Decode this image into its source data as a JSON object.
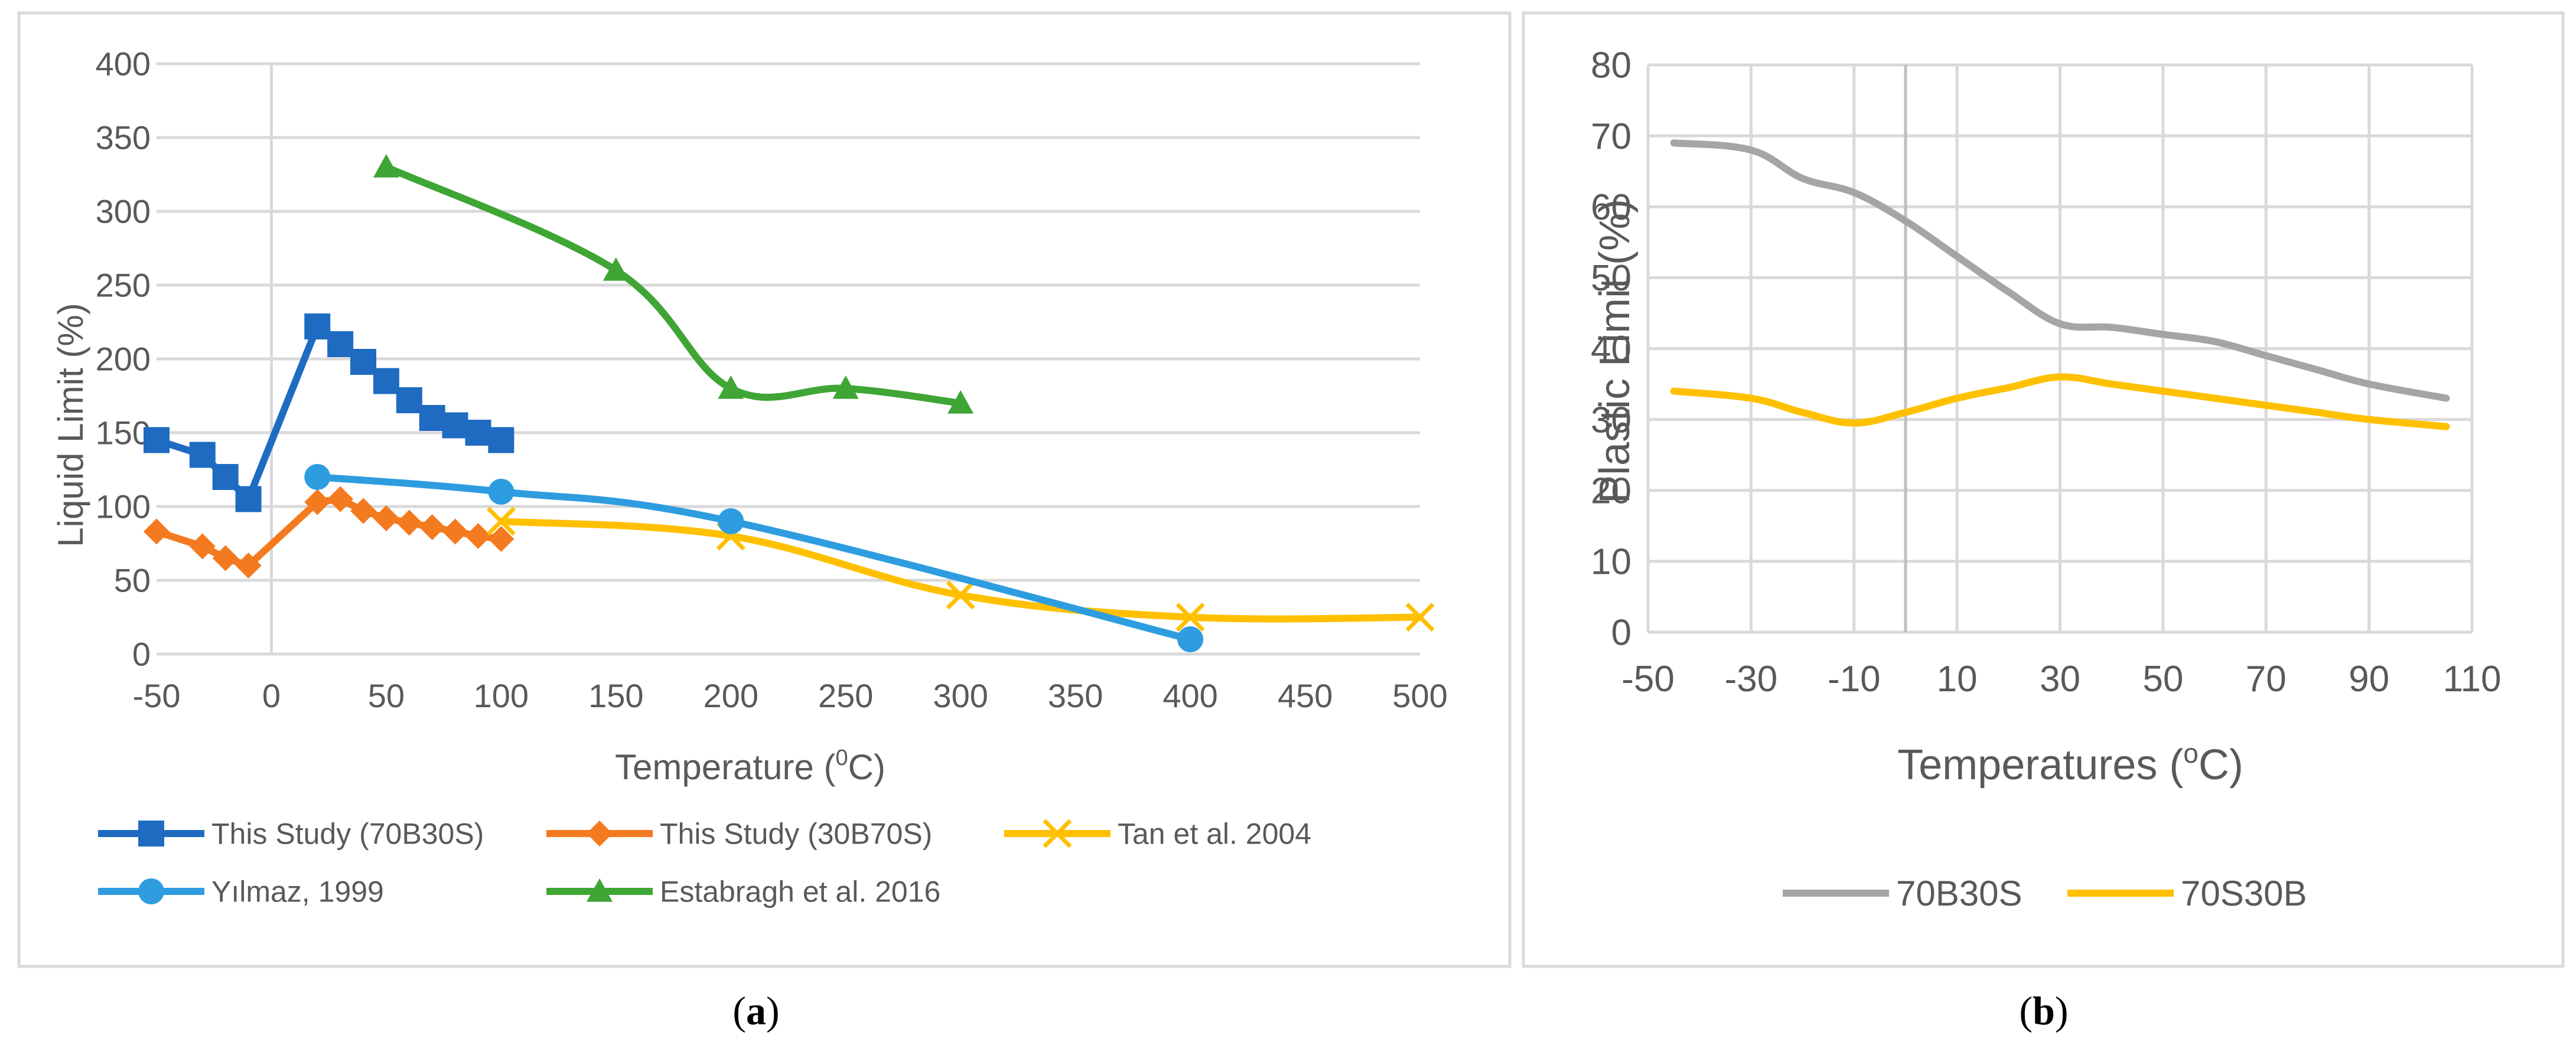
{
  "chart_data": [
    {
      "type": "line",
      "panel_label": "(a)",
      "panel_letter": "a",
      "xlabel": "Temperature (",
      "xlabel_sup": "0",
      "xlabel_tail": "C)",
      "ylabel": "Liquid Limit (%)",
      "xlim": [
        -50,
        500
      ],
      "ylim": [
        0,
        400
      ],
      "xticks": [
        -50,
        0,
        50,
        100,
        150,
        200,
        250,
        300,
        350,
        400,
        450,
        500
      ],
      "yticks": [
        0,
        50,
        100,
        150,
        200,
        250,
        300,
        350,
        400
      ],
      "grid": "horizontal",
      "legend_position": "bottom",
      "series": [
        {
          "name": "This Study (70B30S)",
          "color": "#1f6bc2",
          "marker": "square",
          "smooth": false,
          "x": [
            -50,
            -30,
            -20,
            -10,
            20,
            30,
            40,
            50,
            60,
            70,
            80,
            90,
            100
          ],
          "y": [
            145,
            135,
            120,
            105,
            222,
            210,
            198,
            185,
            172,
            160,
            155,
            150,
            145
          ]
        },
        {
          "name": "This Study (30B70S)",
          "color": "#f47a20",
          "marker": "diamond",
          "smooth": false,
          "x": [
            -50,
            -30,
            -20,
            -10,
            20,
            30,
            40,
            50,
            60,
            70,
            80,
            90,
            100
          ],
          "y": [
            83,
            73,
            65,
            60,
            103,
            105,
            97,
            92,
            89,
            86,
            83,
            80,
            78
          ]
        },
        {
          "name": "Tan et al. 2004",
          "color": "#ffc000",
          "marker": "x",
          "smooth": true,
          "x": [
            100,
            200,
            300,
            400,
            500
          ],
          "y": [
            90,
            80,
            40,
            25,
            25
          ]
        },
        {
          "name": "Yılmaz, 1999",
          "color": "#2e9de0",
          "marker": "circle",
          "smooth": true,
          "x": [
            20,
            100,
            200,
            400
          ],
          "y": [
            120,
            110,
            90,
            10
          ]
        },
        {
          "name": "Estabragh et al. 2016",
          "color": "#3fa535",
          "marker": "triangle",
          "smooth": true,
          "x": [
            50,
            150,
            200,
            250,
            300
          ],
          "y": [
            330,
            260,
            180,
            180,
            170
          ]
        }
      ]
    },
    {
      "type": "line",
      "panel_label": "(b)",
      "panel_letter": "b",
      "xlabel": "Temperatures (",
      "xlabel_sup": "o",
      "xlabel_tail": "C)",
      "ylabel": "Plastic Limit (%)",
      "xlim": [
        -50,
        110
      ],
      "ylim": [
        0,
        80
      ],
      "xticks": [
        -50,
        -30,
        -10,
        10,
        30,
        50,
        70,
        90,
        110
      ],
      "yticks": [
        0,
        10,
        20,
        30,
        40,
        50,
        60,
        70,
        80
      ],
      "grid": "both",
      "legend_position": "bottom",
      "series": [
        {
          "name": "70B30S",
          "color": "#a5a5a5",
          "marker": "none",
          "smooth": true,
          "x": [
            -45,
            -30,
            -20,
            -10,
            0,
            10,
            20,
            30,
            40,
            50,
            60,
            70,
            80,
            90,
            105
          ],
          "y": [
            69,
            68,
            64,
            62,
            58,
            53,
            48,
            43.5,
            43,
            42,
            41,
            39,
            37,
            35,
            33
          ]
        },
        {
          "name": "70S30B",
          "color": "#ffc000",
          "marker": "none",
          "smooth": true,
          "x": [
            -45,
            -30,
            -20,
            -10,
            0,
            10,
            20,
            30,
            40,
            50,
            60,
            70,
            80,
            90,
            105
          ],
          "y": [
            34,
            33,
            31,
            29.5,
            31,
            33,
            34.5,
            36,
            35,
            34,
            33,
            32,
            31,
            30,
            29
          ]
        }
      ]
    }
  ]
}
